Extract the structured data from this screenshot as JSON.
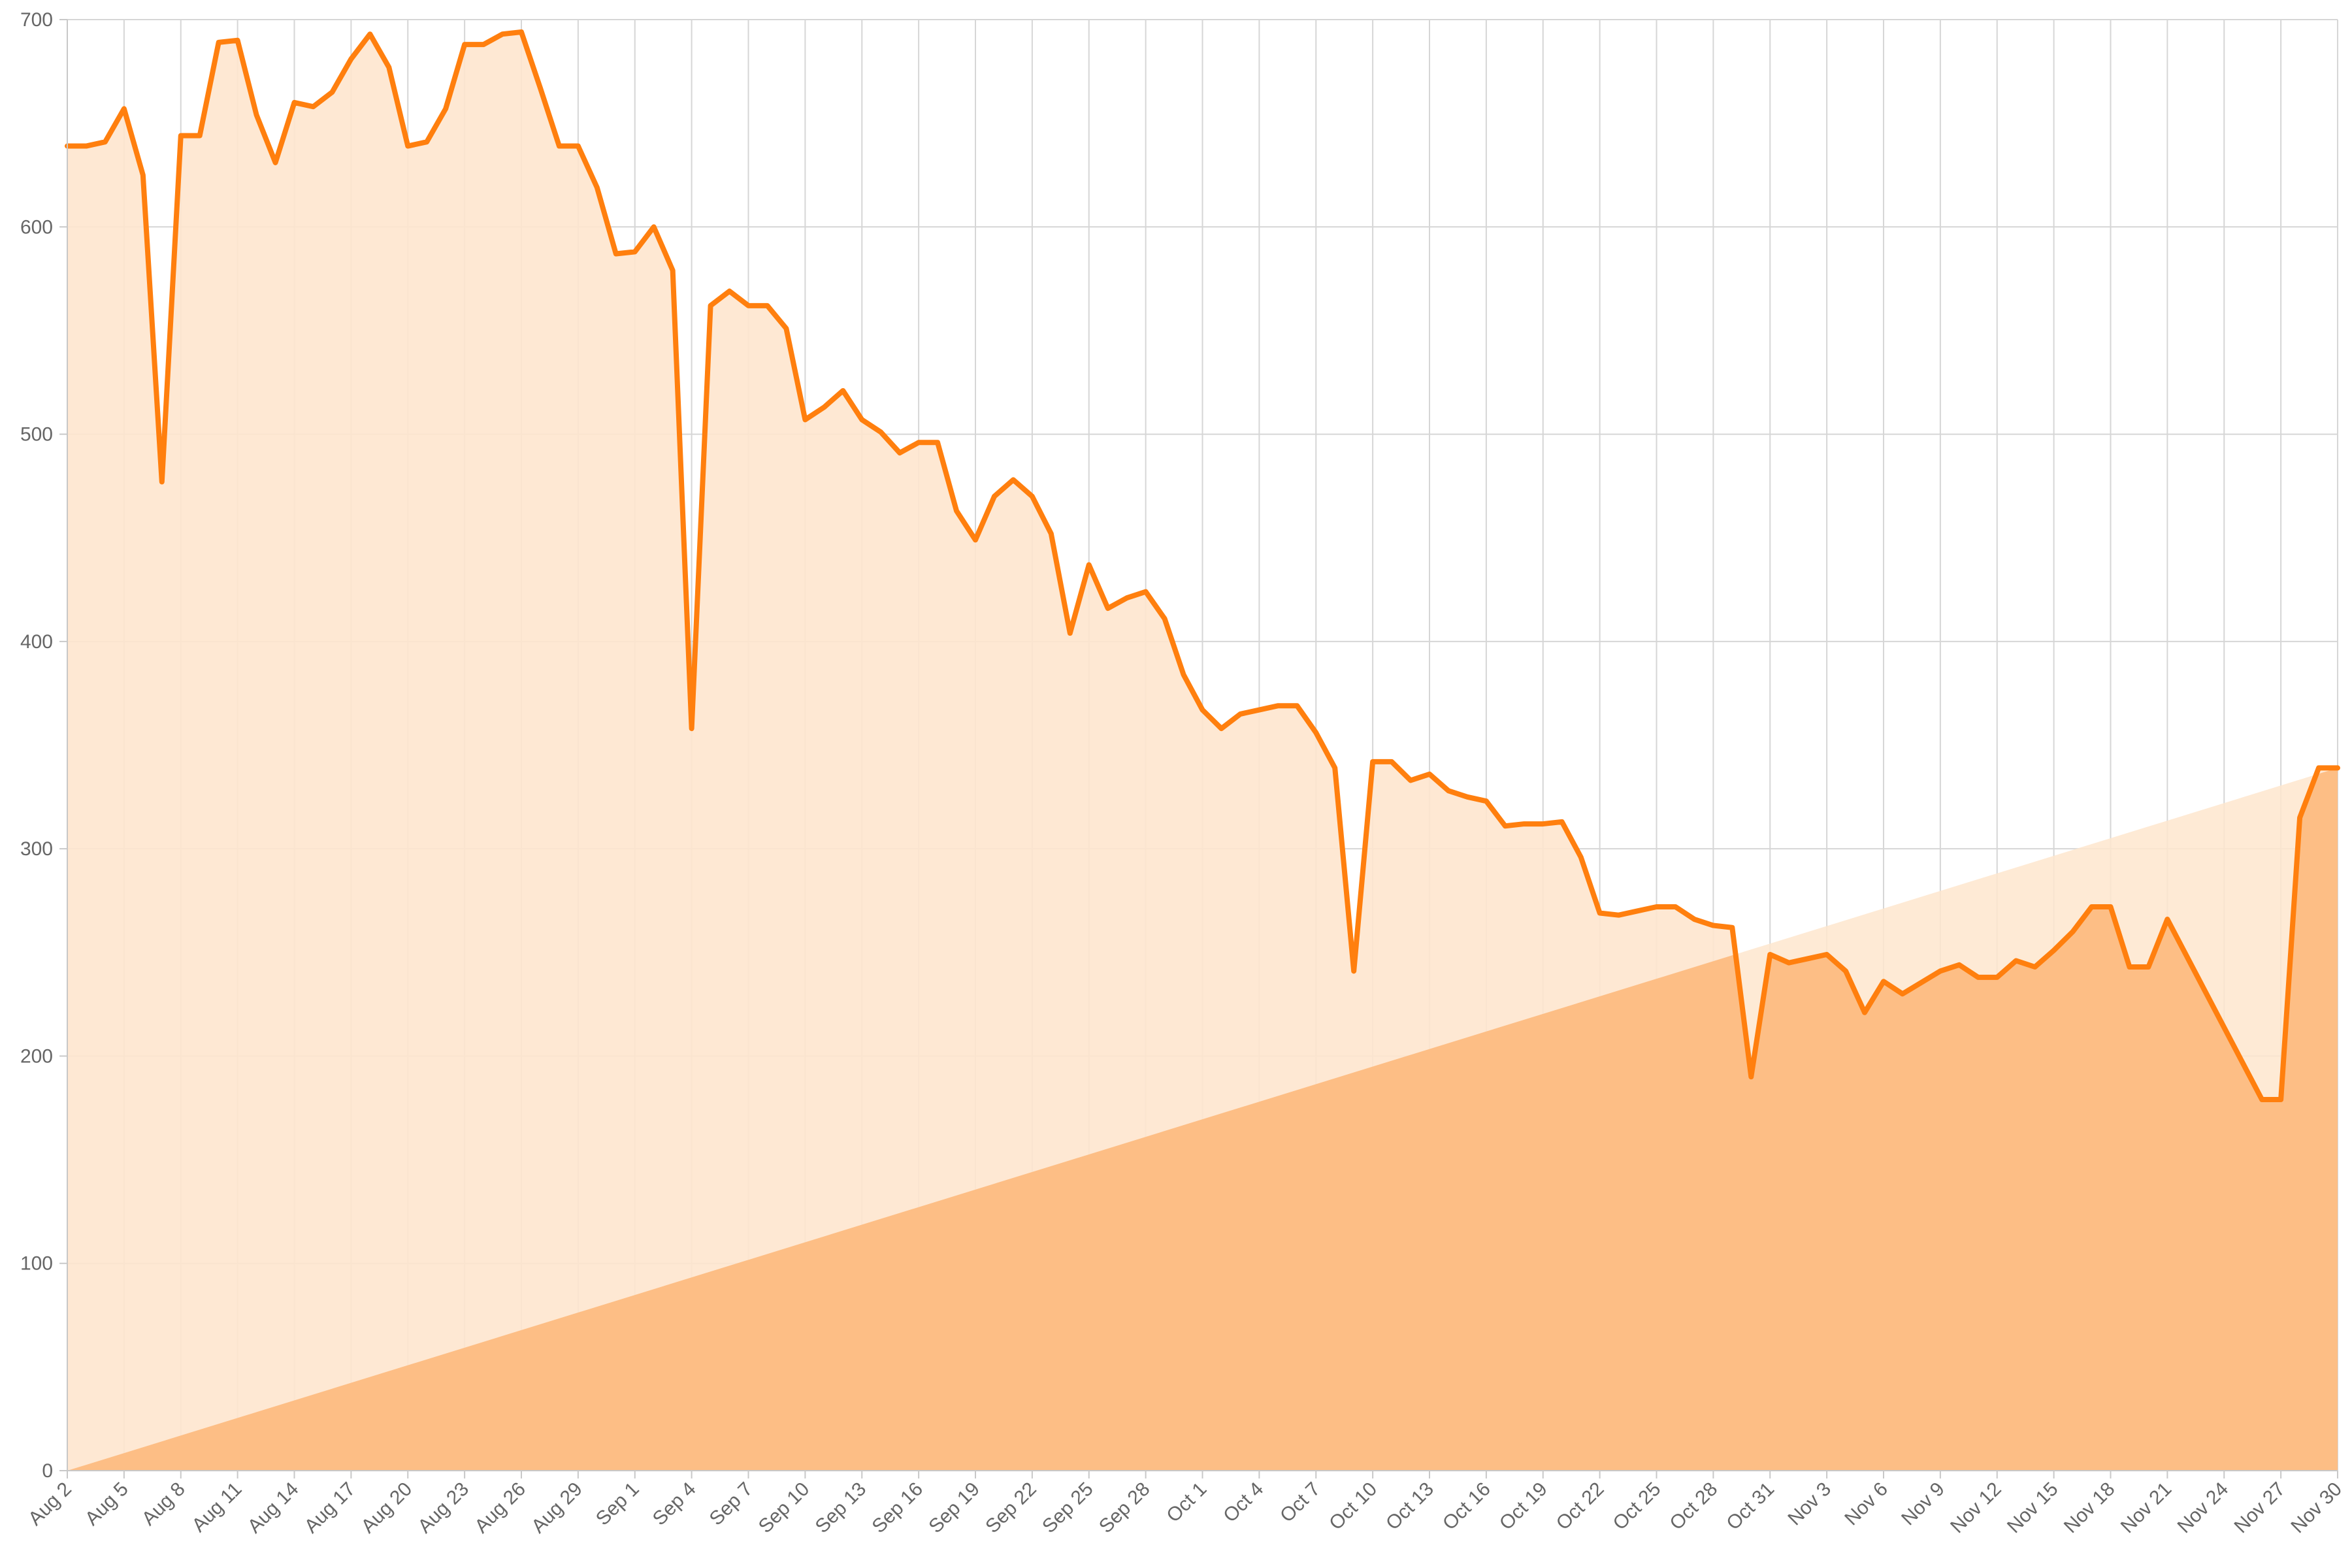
{
  "chart_data": {
    "type": "area",
    "title": "",
    "xlabel": "",
    "ylabel": "",
    "x_range": [
      "Aug 2",
      "Nov 30"
    ],
    "ylim": [
      0,
      700
    ],
    "y_ticks": [
      0,
      100,
      200,
      300,
      400,
      500,
      600,
      700
    ],
    "x_tick_labels": [
      "Aug 2",
      "Aug 5",
      "Aug 8",
      "Aug 11",
      "Aug 14",
      "Aug 17",
      "Aug 20",
      "Aug 23",
      "Aug 26",
      "Aug 29",
      "Sep 1",
      "Sep 4",
      "Sep 7",
      "Sep 10",
      "Sep 13",
      "Sep 16",
      "Sep 19",
      "Sep 22",
      "Sep 25",
      "Sep 28",
      "Oct 1",
      "Oct 4",
      "Oct 7",
      "Oct 10",
      "Oct 13",
      "Oct 16",
      "Oct 19",
      "Oct 22",
      "Oct 25",
      "Oct 28",
      "Oct 31",
      "Nov 3",
      "Nov 6",
      "Nov 9",
      "Nov 12",
      "Nov 15",
      "Nov 18",
      "Nov 21",
      "Nov 24",
      "Nov 27",
      "Nov 30"
    ],
    "grid": true,
    "legend": "none",
    "colors": {
      "line": "#ff7f0e",
      "area_light": "#fee6ce",
      "area_dark": "#fdbe85"
    },
    "series": [
      {
        "style": "line-with-fill",
        "points": [
          [
            "Aug 2",
            639
          ],
          [
            "Aug 3",
            639
          ],
          [
            "Aug 4",
            641
          ],
          [
            "Aug 5",
            657
          ],
          [
            "Aug 6",
            625
          ],
          [
            "Aug 7",
            477
          ],
          [
            "Aug 8",
            644
          ],
          [
            "Aug 9",
            644
          ],
          [
            "Aug 10",
            689
          ],
          [
            "Aug 11",
            690
          ],
          [
            "Aug 12",
            654
          ],
          [
            "Aug 13",
            631
          ],
          [
            "Aug 14",
            660
          ],
          [
            "Aug 15",
            658
          ],
          [
            "Aug 16",
            665
          ],
          [
            "Aug 17",
            681
          ],
          [
            "Aug 18",
            693
          ],
          [
            "Aug 19",
            677
          ],
          [
            "Aug 20",
            639
          ],
          [
            "Aug 21",
            641
          ],
          [
            "Aug 22",
            657
          ],
          [
            "Aug 23",
            688
          ],
          [
            "Aug 24",
            688
          ],
          [
            "Aug 25",
            693
          ],
          [
            "Aug 26",
            694
          ],
          [
            "Aug 27",
            667
          ],
          [
            "Aug 28",
            639
          ],
          [
            "Aug 29",
            639
          ],
          [
            "Aug 30",
            619
          ],
          [
            "Aug 31",
            587
          ],
          [
            "Sep 1",
            588
          ],
          [
            "Sep 2",
            600
          ],
          [
            "Sep 3",
            579
          ],
          [
            "Sep 4",
            358
          ],
          [
            "Sep 5",
            562
          ],
          [
            "Sep 6",
            569
          ],
          [
            "Sep 7",
            562
          ],
          [
            "Sep 8",
            562
          ],
          [
            "Sep 9",
            551
          ],
          [
            "Sep 10",
            507
          ],
          [
            "Sep 11",
            513
          ],
          [
            "Sep 12",
            521
          ],
          [
            "Sep 13",
            507
          ],
          [
            "Sep 14",
            501
          ],
          [
            "Sep 15",
            491
          ],
          [
            "Sep 16",
            496
          ],
          [
            "Sep 17",
            496
          ],
          [
            "Sep 18",
            463
          ],
          [
            "Sep 19",
            449
          ],
          [
            "Sep 20",
            470
          ],
          [
            "Sep 21",
            478
          ],
          [
            "Sep 22",
            470
          ],
          [
            "Sep 23",
            452
          ],
          [
            "Sep 24",
            404
          ],
          [
            "Sep 25",
            437
          ],
          [
            "Sep 26",
            416
          ],
          [
            "Sep 27",
            421
          ],
          [
            "Sep 28",
            424
          ],
          [
            "Sep 29",
            411
          ],
          [
            "Sep 30",
            384
          ],
          [
            "Oct 1",
            367
          ],
          [
            "Oct 2",
            358
          ],
          [
            "Oct 3",
            365
          ],
          [
            "Oct 4",
            367
          ],
          [
            "Oct 5",
            369
          ],
          [
            "Oct 6",
            369
          ],
          [
            "Oct 7",
            356
          ],
          [
            "Oct 8",
            339
          ],
          [
            "Oct 9",
            241
          ],
          [
            "Oct 10",
            342
          ],
          [
            "Oct 11",
            342
          ],
          [
            "Oct 12",
            333
          ],
          [
            "Oct 13",
            336
          ],
          [
            "Oct 14",
            328
          ],
          [
            "Oct 15",
            325
          ],
          [
            "Oct 16",
            323
          ],
          [
            "Oct 17",
            311
          ],
          [
            "Oct 18",
            312
          ],
          [
            "Oct 19",
            312
          ],
          [
            "Oct 20",
            313
          ],
          [
            "Oct 21",
            296
          ],
          [
            "Oct 22",
            269
          ],
          [
            "Oct 23",
            268
          ],
          [
            "Oct 24",
            270
          ],
          [
            "Oct 25",
            272
          ],
          [
            "Oct 26",
            272
          ],
          [
            "Oct 27",
            266
          ],
          [
            "Oct 28",
            263
          ],
          [
            "Oct 29",
            262
          ],
          [
            "Oct 30",
            190
          ],
          [
            "Oct 31",
            249
          ],
          [
            "Nov 1",
            245
          ],
          [
            "Nov 2",
            247
          ],
          [
            "Nov 3",
            249
          ],
          [
            "Nov 4",
            241
          ],
          [
            "Nov 5",
            221
          ],
          [
            "Nov 6",
            236
          ],
          [
            "Nov 7",
            230
          ],
          [
            "Nov 9",
            241
          ],
          [
            "Nov 10",
            244
          ],
          [
            "Nov 11",
            238
          ],
          [
            "Nov 12",
            238
          ],
          [
            "Nov 13",
            246
          ],
          [
            "Nov 14",
            243
          ],
          [
            "Nov 15",
            251
          ],
          [
            "Nov 16",
            260
          ],
          [
            "Nov 17",
            272
          ],
          [
            "Nov 18",
            272
          ],
          [
            "Nov 19",
            243
          ],
          [
            "Nov 20",
            243
          ],
          [
            "Nov 21",
            266
          ],
          [
            "Nov 26",
            179
          ],
          [
            "Nov 27",
            179
          ],
          [
            "Nov 28",
            315
          ],
          [
            "Nov 29",
            339
          ],
          [
            "Nov 30",
            339
          ]
        ]
      },
      {
        "style": "fill-only",
        "points": [
          [
            "Aug 2",
            0
          ],
          [
            "Nov 30",
            339
          ]
        ]
      }
    ]
  }
}
